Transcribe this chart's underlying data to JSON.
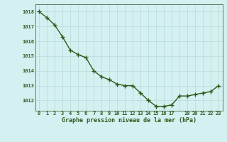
{
  "x_values": [
    0,
    1,
    2,
    3,
    4,
    5,
    6,
    7,
    8,
    9,
    10,
    11,
    12,
    13,
    14,
    15,
    16,
    17,
    18,
    19,
    20,
    21,
    22,
    23
  ],
  "y_values": [
    1018.0,
    1017.6,
    1017.1,
    1016.3,
    1015.4,
    1015.1,
    1014.9,
    1014.0,
    1013.6,
    1013.4,
    1013.1,
    1013.0,
    1013.0,
    1012.5,
    1012.0,
    1011.6,
    1011.6,
    1011.7,
    1012.3,
    1012.3,
    1012.4,
    1012.5,
    1012.6,
    1013.0
  ],
  "line_color": "#2d5a1b",
  "marker_color": "#2d5a1b",
  "bg_color": "#d4f0f0",
  "grid_color": "#b8d8d8",
  "axis_color": "#5a7a5a",
  "tick_label_color": "#2d5a1b",
  "xlabel": "Graphe pression niveau de la mer (hPa)",
  "xlabel_color": "#2d5a1b",
  "ylim": [
    1011.3,
    1018.5
  ],
  "yticks": [
    1012,
    1013,
    1014,
    1015,
    1016,
    1017,
    1018
  ],
  "xticks": [
    0,
    1,
    2,
    3,
    4,
    5,
    6,
    7,
    8,
    9,
    10,
    11,
    12,
    13,
    14,
    15,
    16,
    17,
    18,
    19,
    20,
    21,
    22,
    23
  ],
  "xtick_labels": [
    "0",
    "1",
    "2",
    "3",
    "4",
    "5",
    "6",
    "7",
    "8",
    "9",
    "10",
    "11",
    "12",
    "13",
    "14",
    "15",
    "16",
    "17",
    "",
    "19",
    "20",
    "21",
    "22",
    "23"
  ],
  "marker_size": 4,
  "line_width": 1.0
}
